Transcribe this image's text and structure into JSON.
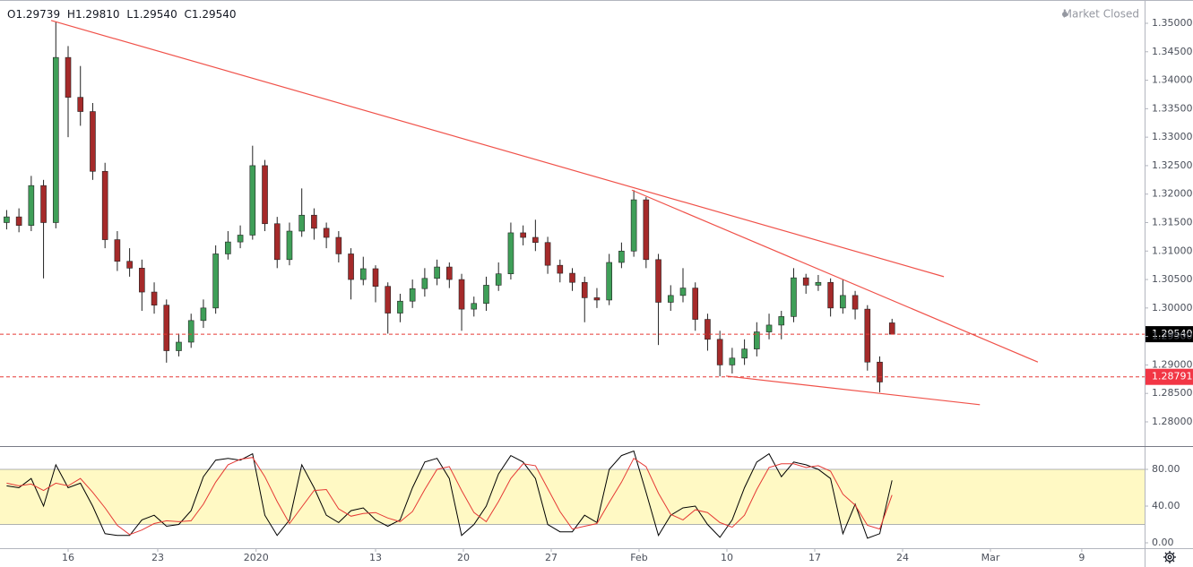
{
  "header": {
    "items": [
      {
        "key": "O",
        "value": "1.29739"
      },
      {
        "key": "H",
        "value": "1.29810"
      },
      {
        "key": "L",
        "value": "1.29540"
      },
      {
        "key": "C",
        "value": "1.29540"
      }
    ],
    "status": "Market Closed"
  },
  "chart_data": [
    {
      "type": "candlestick",
      "x": [
        -3.5,
        -2.8,
        -2.1,
        -1.4,
        -0.7,
        0,
        0.7,
        1.4,
        2.1,
        2.8,
        3.5,
        4.2,
        4.9,
        5.6,
        6.3,
        7,
        7.7,
        8.4,
        9.1,
        9.8,
        10.5,
        11.2,
        11.9,
        12.6,
        13.3,
        14,
        14.7,
        15.4,
        16.1,
        16.8,
        17.5,
        18.2,
        18.9,
        19.6,
        20.3,
        21,
        21.7,
        22.4,
        23.1,
        23.8,
        24.5,
        25.2,
        25.9,
        26.6,
        27.3,
        28,
        28.7,
        29.4,
        30.1,
        30.8,
        31.5,
        32.2,
        32.9,
        33.6,
        34.3,
        35,
        35.7,
        36.4,
        37.1,
        37.8,
        38.5,
        39.2,
        39.9,
        40.6,
        41.3,
        42,
        42.7,
        43.4,
        44.1,
        44.8,
        45.5,
        46.2,
        46.9
      ],
      "open": [
        1.315,
        1.316,
        1.3145,
        1.3215,
        1.315,
        1.344,
        1.337,
        1.3345,
        1.324,
        1.312,
        1.3082,
        1.307,
        1.3028,
        1.3005,
        1.2925,
        1.294,
        1.2978,
        1.3,
        1.3095,
        1.3116,
        1.3128,
        1.325,
        1.3148,
        1.3085,
        1.3135,
        1.3163,
        1.314,
        1.3124,
        1.3095,
        1.305,
        1.3069,
        1.3038,
        1.2991,
        1.3012,
        1.3034,
        1.3052,
        1.3072,
        1.305,
        1.2998,
        1.3008,
        1.304,
        1.306,
        1.3132,
        1.3124,
        1.3115,
        1.3075,
        1.3061,
        1.3045,
        1.3018,
        1.3014,
        1.308,
        1.31,
        1.319,
        1.3085,
        1.301,
        1.3022,
        1.3035,
        1.298,
        1.2945,
        1.29,
        1.2912,
        1.2928,
        1.2958,
        1.297,
        1.2985,
        1.3053,
        1.304,
        1.3045,
        1.3,
        1.3022,
        1.2998,
        1.2905,
        1.29739
      ],
      "high": [
        1.3172,
        1.3175,
        1.3232,
        1.3225,
        1.3503,
        1.346,
        1.3425,
        1.336,
        1.3255,
        1.3135,
        1.3105,
        1.3085,
        1.3045,
        1.3015,
        1.2955,
        1.299,
        1.3015,
        1.311,
        1.3135,
        1.3145,
        1.3285,
        1.326,
        1.316,
        1.315,
        1.321,
        1.3175,
        1.315,
        1.3135,
        1.3105,
        1.309,
        1.3075,
        1.3045,
        1.3025,
        1.305,
        1.307,
        1.3085,
        1.308,
        1.306,
        1.302,
        1.3055,
        1.308,
        1.315,
        1.3145,
        1.3155,
        1.3125,
        1.3085,
        1.307,
        1.3055,
        1.3035,
        1.3095,
        1.3115,
        1.3207,
        1.3195,
        1.3095,
        1.304,
        1.307,
        1.3045,
        1.299,
        1.296,
        1.293,
        1.2945,
        1.2975,
        1.299,
        1.2995,
        1.307,
        1.306,
        1.3058,
        1.3052,
        1.305,
        1.303,
        1.3005,
        1.2915,
        1.2981
      ],
      "low": [
        1.3138,
        1.3133,
        1.3135,
        1.3052,
        1.314,
        1.33,
        1.332,
        1.3225,
        1.3105,
        1.3065,
        1.3055,
        1.2995,
        1.299,
        1.2904,
        1.2915,
        1.293,
        1.2965,
        1.299,
        1.3085,
        1.3105,
        1.312,
        1.3135,
        1.307,
        1.3075,
        1.3125,
        1.312,
        1.3105,
        1.308,
        1.3015,
        1.304,
        1.301,
        1.2955,
        1.2975,
        1.3,
        1.302,
        1.304,
        1.3035,
        1.296,
        1.2985,
        1.2995,
        1.303,
        1.305,
        1.311,
        1.31,
        1.306,
        1.3045,
        1.303,
        1.2975,
        1.3,
        1.3005,
        1.307,
        1.309,
        1.307,
        1.2935,
        1.2995,
        1.301,
        1.296,
        1.2925,
        1.288,
        1.2885,
        1.29,
        1.2915,
        1.2945,
        1.2945,
        1.2975,
        1.3025,
        1.303,
        1.2985,
        1.299,
        1.298,
        1.289,
        1.2852,
        1.2954
      ],
      "close": [
        1.316,
        1.3145,
        1.3215,
        1.315,
        1.344,
        1.337,
        1.3345,
        1.324,
        1.312,
        1.3082,
        1.307,
        1.3028,
        1.3005,
        1.2925,
        1.294,
        1.2978,
        1.3,
        1.3095,
        1.3116,
        1.3128,
        1.325,
        1.3148,
        1.3085,
        1.3135,
        1.3163,
        1.314,
        1.3124,
        1.3095,
        1.305,
        1.3069,
        1.3038,
        1.2991,
        1.3012,
        1.3034,
        1.3052,
        1.3072,
        1.305,
        1.2998,
        1.3008,
        1.304,
        1.306,
        1.3132,
        1.3124,
        1.3115,
        1.3075,
        1.3061,
        1.3045,
        1.3018,
        1.3014,
        1.308,
        1.31,
        1.319,
        1.3085,
        1.301,
        1.3022,
        1.3035,
        1.298,
        1.2945,
        1.29,
        1.2912,
        1.2928,
        1.2958,
        1.297,
        1.2985,
        1.3053,
        1.304,
        1.3045,
        1.3,
        1.3022,
        1.2998,
        1.2905,
        1.287,
        1.2954
      ],
      "up_color": "#3f9f58",
      "down_color": "#a52a2a",
      "xlim": [
        -3.878,
        61.276
      ],
      "ylim": [
        1.27575,
        1.35409
      ],
      "yticks": [
        {
          "value": 1.35,
          "label": "1.35000"
        },
        {
          "value": 1.345,
          "label": "1.34500"
        },
        {
          "value": 1.34,
          "label": "1.34000"
        },
        {
          "value": 1.335,
          "label": "1.33500"
        },
        {
          "value": 1.33,
          "label": "1.33000"
        },
        {
          "value": 1.325,
          "label": "1.32500"
        },
        {
          "value": 1.32,
          "label": "1.32000"
        },
        {
          "value": 1.315,
          "label": "1.31500"
        },
        {
          "value": 1.31,
          "label": "1.31000"
        },
        {
          "value": 1.305,
          "label": "1.30500"
        },
        {
          "value": 1.3,
          "label": "1.30000"
        },
        {
          "value": 1.295,
          "label": "1.29500"
        },
        {
          "value": 1.29,
          "label": "1.29000"
        },
        {
          "value": 1.285,
          "label": "1.28500"
        },
        {
          "value": 1.28,
          "label": "1.28000"
        }
      ],
      "xticks": [
        {
          "value": 0,
          "label": "16"
        },
        {
          "value": 5.1,
          "label": "23"
        },
        {
          "value": 10.7,
          "label": "2020"
        },
        {
          "value": 17.5,
          "label": "13"
        },
        {
          "value": 22.5,
          "label": "20"
        },
        {
          "value": 27.5,
          "label": "27"
        },
        {
          "value": 32.5,
          "label": "Feb"
        },
        {
          "value": 37.5,
          "label": "10"
        },
        {
          "value": 42.5,
          "label": "17"
        },
        {
          "value": 47.5,
          "label": "24"
        },
        {
          "value": 52.5,
          "label": "Mar"
        },
        {
          "value": 57.7,
          "label": "9"
        }
      ],
      "hlines": [
        {
          "value": 1.2954,
          "label": "1.29540",
          "color": "#000000"
        },
        {
          "value": 1.28791,
          "label": "1.28791",
          "color": "#f23645"
        }
      ],
      "trendlines": [
        {
          "x": [
            -0.97,
            49.85
          ],
          "y": [
            1.3505,
            1.3055
          ]
        },
        {
          "x": [
            32.09,
            55.2
          ],
          "y": [
            1.3207,
            1.2905
          ]
        },
        {
          "x": [
            37.45,
            51.9
          ],
          "y": [
            1.28805,
            1.28302
          ]
        }
      ],
      "trend_color": "#f0524a"
    },
    {
      "type": "line",
      "series": [
        {
          "color": "#000000",
          "values": [
            62,
            60,
            70,
            40,
            85,
            60,
            65,
            40,
            10,
            8,
            8,
            25,
            30,
            18,
            20,
            35,
            72,
            90,
            92,
            90,
            97,
            30,
            8,
            25,
            85,
            60,
            30,
            22,
            35,
            38,
            25,
            18,
            25,
            60,
            88,
            92,
            70,
            8,
            20,
            40,
            75,
            95,
            88,
            70,
            20,
            12,
            12,
            30,
            22,
            80,
            95,
            100,
            55,
            8,
            30,
            38,
            40,
            20,
            6,
            25,
            60,
            88,
            97,
            72,
            88,
            85,
            80,
            70,
            10,
            42,
            5,
            10,
            68
          ]
        },
        {
          "color": "#e53935",
          "values": [
            65,
            62,
            64,
            57,
            65,
            62,
            70,
            55,
            38,
            19,
            9,
            14,
            21,
            24,
            23,
            24,
            42,
            66,
            85,
            91,
            93,
            72,
            45,
            21,
            39,
            57,
            58,
            37,
            29,
            32,
            33,
            27,
            23,
            34,
            58,
            80,
            83,
            57,
            33,
            23,
            45,
            70,
            86,
            84,
            59,
            34,
            15,
            18,
            21,
            44,
            66,
            92,
            83,
            54,
            31,
            25,
            36,
            33,
            22,
            17,
            30,
            58,
            82,
            86,
            86,
            82,
            84,
            78,
            53,
            41,
            19,
            15,
            52
          ]
        }
      ],
      "band": [
        20,
        80
      ],
      "band_color": "#fff9c4",
      "ylim": [
        -5.85,
        103.4
      ],
      "yticks": [
        {
          "value": 80,
          "label": "80.00"
        },
        {
          "value": 40,
          "label": "40.00"
        },
        {
          "value": 0,
          "label": "0.00"
        }
      ]
    }
  ]
}
